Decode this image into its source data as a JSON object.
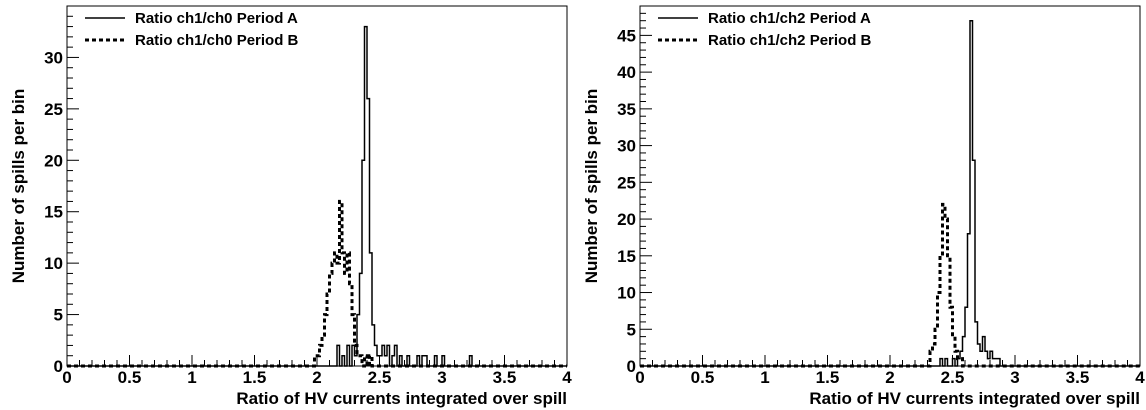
{
  "chart_data": [
    {
      "type": "histogram",
      "xlabel": "Ratio of HV currents integrated over spill",
      "ylabel": "Number of spills per bin",
      "xlim": [
        0,
        4
      ],
      "ylim": [
        0,
        35
      ],
      "xticks": [
        "0",
        "0.5",
        "1",
        "1.5",
        "2",
        "2.5",
        "3",
        "3.5",
        "4"
      ],
      "yticks": [
        "0",
        "5",
        "10",
        "15",
        "20",
        "25",
        "30"
      ],
      "yticks_values": [
        0,
        5,
        10,
        15,
        20,
        25,
        30
      ],
      "legend_position": "top-left",
      "bin_width": 0.02,
      "series": [
        {
          "name": "Ratio ch1/ch0 Period A",
          "style": "solid",
          "x": [
            2.16,
            2.2,
            2.24,
            2.28,
            2.3,
            2.32,
            2.34,
            2.36,
            2.38,
            2.4,
            2.42,
            2.44,
            2.46,
            2.48,
            2.5,
            2.52,
            2.54,
            2.56,
            2.6,
            2.62,
            2.66,
            2.72,
            2.8,
            2.84,
            2.86,
            2.94,
            3.0,
            3.22
          ],
          "y": [
            2,
            1,
            2,
            2,
            1,
            5,
            9,
            20,
            33,
            26,
            11,
            4,
            2,
            1,
            1,
            2,
            1,
            2,
            1,
            2,
            1,
            1,
            1,
            1,
            1,
            1,
            1,
            1
          ]
        },
        {
          "name": "Ratio ch1/ch0 Period B",
          "style": "dashed",
          "x": [
            1.98,
            2.0,
            2.02,
            2.04,
            2.06,
            2.08,
            2.1,
            2.12,
            2.14,
            2.16,
            2.18,
            2.2,
            2.22,
            2.24,
            2.26,
            2.28,
            2.3,
            2.32,
            2.34,
            2.38,
            2.42
          ],
          "y": [
            1,
            1,
            2,
            3,
            5,
            7,
            9,
            10,
            11,
            10,
            16,
            11,
            9,
            11,
            8,
            5,
            2,
            1,
            1,
            1,
            1
          ]
        }
      ]
    },
    {
      "type": "histogram",
      "xlabel": "Ratio of HV currents integrated over spill",
      "ylabel": "Number of spills per bin",
      "xlim": [
        0,
        4
      ],
      "ylim": [
        0,
        49
      ],
      "xticks": [
        "0",
        "0.5",
        "1",
        "1.5",
        "2",
        "2.5",
        "3",
        "3.5",
        "4"
      ],
      "yticks": [
        "0",
        "5",
        "10",
        "15",
        "20",
        "25",
        "30",
        "35",
        "40",
        "45"
      ],
      "yticks_values": [
        0,
        5,
        10,
        15,
        20,
        25,
        30,
        35,
        40,
        45
      ],
      "legend_position": "top-left",
      "bin_width": 0.02,
      "series": [
        {
          "name": "Ratio ch1/ch2 Period A",
          "style": "solid",
          "x": [
            2.4,
            2.44,
            2.5,
            2.54,
            2.56,
            2.58,
            2.6,
            2.62,
            2.64,
            2.66,
            2.68,
            2.7,
            2.72,
            2.74,
            2.76,
            2.78,
            2.8,
            2.82,
            2.84,
            2.86
          ],
          "y": [
            1,
            1,
            1,
            1,
            2,
            4,
            8,
            18,
            47,
            28,
            6,
            3,
            2,
            4,
            2,
            1,
            2,
            1,
            1,
            1
          ]
        },
        {
          "name": "Ratio ch1/ch2 Period B",
          "style": "dashed",
          "x": [
            2.32,
            2.34,
            2.36,
            2.38,
            2.4,
            2.42,
            2.44,
            2.46,
            2.48,
            2.5,
            2.52,
            2.54,
            2.56
          ],
          "y": [
            2,
            3,
            5,
            10,
            15,
            22,
            20,
            15,
            8,
            4,
            2,
            1,
            1
          ]
        }
      ]
    }
  ]
}
